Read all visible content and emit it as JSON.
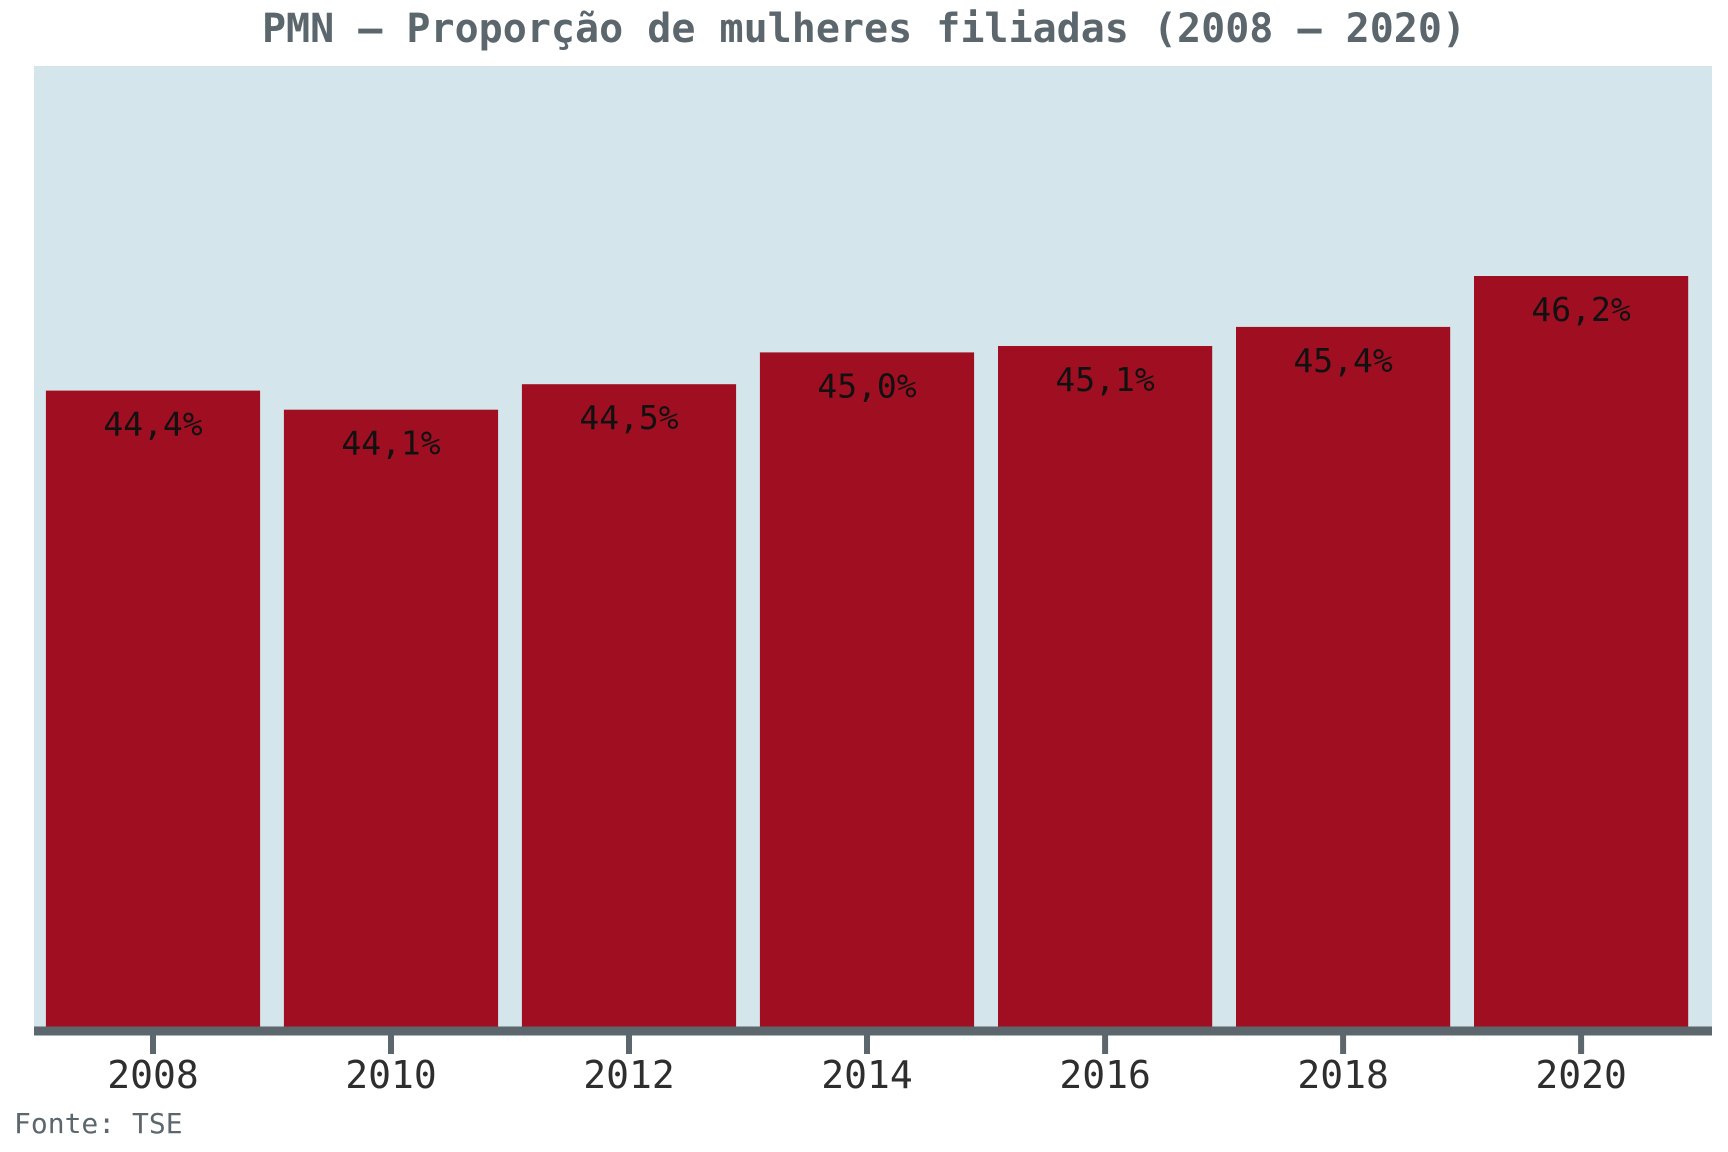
{
  "chart_data": {
    "type": "bar",
    "title": "PMN – Proporção de mulheres filiadas (2008 – 2020)",
    "categories": [
      "2008",
      "2010",
      "2012",
      "2014",
      "2016",
      "2018",
      "2020"
    ],
    "values": [
      44.4,
      44.1,
      44.5,
      45.0,
      45.1,
      45.4,
      46.2
    ],
    "value_labels": [
      "44,4%",
      "44,1%",
      "44,5%",
      "45,0%",
      "45,1%",
      "45,4%",
      "46,2%"
    ],
    "xlabel": "",
    "ylabel": "",
    "ylim": [
      34.4,
      49.5
    ],
    "grid": false,
    "legend": "none",
    "source": "Fonte: TSE",
    "colors": {
      "bar": "#a00f21",
      "plot_background": "#d5e5ec",
      "axis": "#5b666d",
      "title": "#5b666d"
    }
  }
}
